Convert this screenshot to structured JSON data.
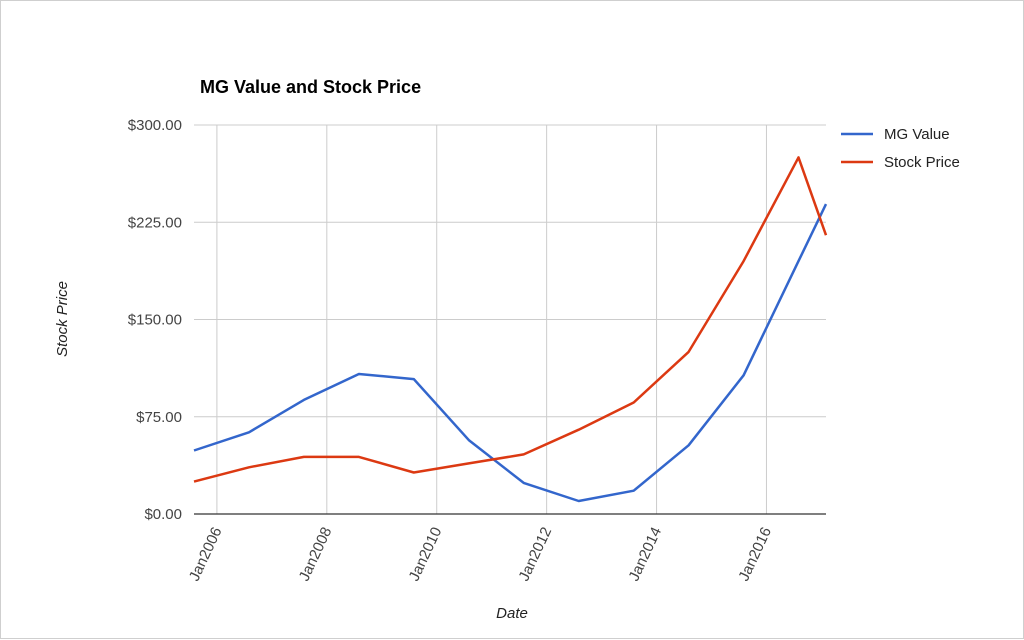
{
  "chart_data": {
    "type": "line",
    "title": "MG Value and Stock Price",
    "xlabel": "Date",
    "ylabel": "Stock Price",
    "x_tick_labels": [
      "Jan2006",
      "Jan2008",
      "Jan2010",
      "Jan2012",
      "Jan2014",
      "Jan2016"
    ],
    "y_tick_labels": [
      "$0.00",
      "$75.00",
      "$150.00",
      "$225.00",
      "$300.00"
    ],
    "y_ticks": [
      0,
      75,
      150,
      225,
      300
    ],
    "x": [
      "2005-08",
      "2006-08",
      "2007-08",
      "2008-08",
      "2009-08",
      "2010-08",
      "2011-08",
      "2012-08",
      "2013-08",
      "2014-08",
      "2015-08",
      "2016-08",
      "2017-02"
    ],
    "xlim": [
      "2005-08",
      "2017-02"
    ],
    "ylim": [
      0,
      300
    ],
    "series": [
      {
        "name": "MG Value",
        "color": "#3366cc",
        "values": [
          49,
          63,
          88,
          108,
          104,
          57,
          24,
          10,
          18,
          53,
          107,
          195,
          239
        ]
      },
      {
        "name": "Stock Price",
        "color": "#dc3912",
        "values": [
          25,
          36,
          44,
          44,
          32,
          39,
          46,
          65,
          86,
          125,
          195,
          275,
          215
        ]
      }
    ],
    "grid": true,
    "legend_position": "right"
  }
}
